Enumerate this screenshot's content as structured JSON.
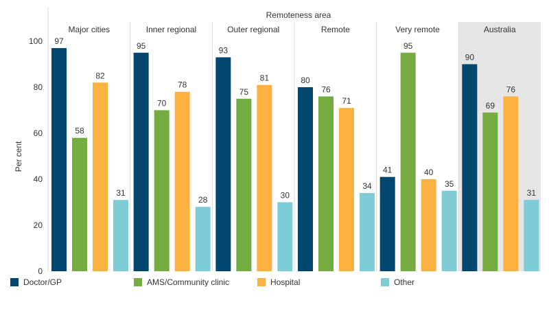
{
  "chart_data": {
    "type": "bar",
    "title": "Remoteness area",
    "ylabel": "Per cent",
    "xlabel": "",
    "ylim": [
      0,
      100
    ],
    "yticks": [
      0,
      20,
      40,
      60,
      80,
      100
    ],
    "grid": false,
    "legend_position": "bottom",
    "categories": [
      "Major cities",
      "Inner regional",
      "Outer regional",
      "Remote",
      "Very remote",
      "Australia"
    ],
    "highlighted_category": "Australia",
    "series": [
      {
        "name": "Doctor/GP",
        "color": "#00466e",
        "values": [
          97,
          95,
          93,
          80,
          41,
          90
        ]
      },
      {
        "name": "AMS/Community clinic",
        "color": "#75ac42",
        "values": [
          58,
          70,
          75,
          76,
          95,
          69
        ]
      },
      {
        "name": "Hospital",
        "color": "#fdb140",
        "values": [
          82,
          78,
          81,
          71,
          40,
          76
        ]
      },
      {
        "name": "Other",
        "color": "#7ecdd6",
        "values": [
          31,
          28,
          30,
          34,
          35,
          31
        ]
      }
    ]
  },
  "colors": {
    "highlight_panel": "#e5e5e5",
    "divider": "#d9d9d9",
    "text": "#333333"
  }
}
